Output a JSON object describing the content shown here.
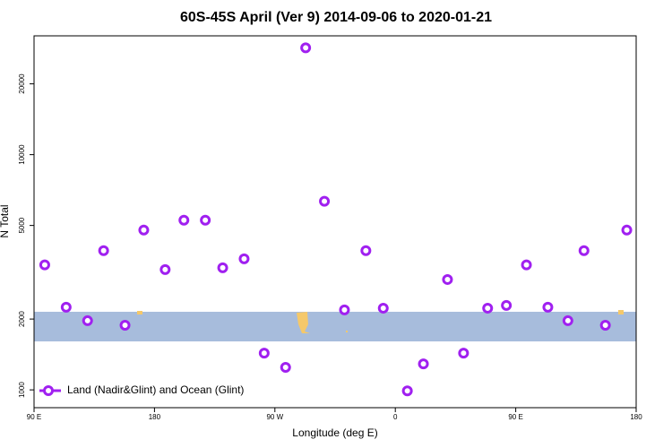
{
  "chart_data": {
    "type": "scatter",
    "title": "60S-45S April (Ver 9)   2014-09-06 to 2020-01-21",
    "xlabel": "Longitude (deg E)",
    "ylabel": "N Total",
    "xlim": [
      90,
      540
    ],
    "xticks": [
      {
        "value": 90,
        "label": "90 E"
      },
      {
        "value": 180,
        "label": "180"
      },
      {
        "value": 270,
        "label": "90 W"
      },
      {
        "value": 360,
        "label": "0"
      },
      {
        "value": 450,
        "label": "90 E"
      },
      {
        "value": 540,
        "label": "180"
      }
    ],
    "ylim": [
      840,
      32000
    ],
    "ylog": true,
    "yticks": [
      1000,
      2000,
      5000,
      10000,
      20000
    ],
    "shaded_band": [
      1607,
      2148
    ],
    "band_color": "#a7bcdc",
    "legend": "bottom-left",
    "series": [
      {
        "name": "Land (Nadir&Glint) and Ocean (Glint)",
        "color": "#a020f0",
        "x": [
          98,
          114,
          130,
          142,
          158,
          172,
          188,
          202,
          218,
          231,
          247,
          262,
          278,
          293,
          307,
          322,
          338,
          351,
          369,
          381,
          399,
          411,
          429,
          443,
          458,
          474,
          489,
          501,
          517,
          533
        ],
        "values": [
          3400,
          2245,
          1968,
          3906,
          1883,
          4780,
          3246,
          5265,
          5265,
          3305,
          3608,
          1433,
          1246,
          28450,
          6337,
          2187,
          3906,
          2225,
          990,
          1290,
          2946,
          1433,
          2225,
          2285,
          3400,
          2245,
          1968,
          3906,
          1883,
          4780
        ]
      }
    ]
  }
}
